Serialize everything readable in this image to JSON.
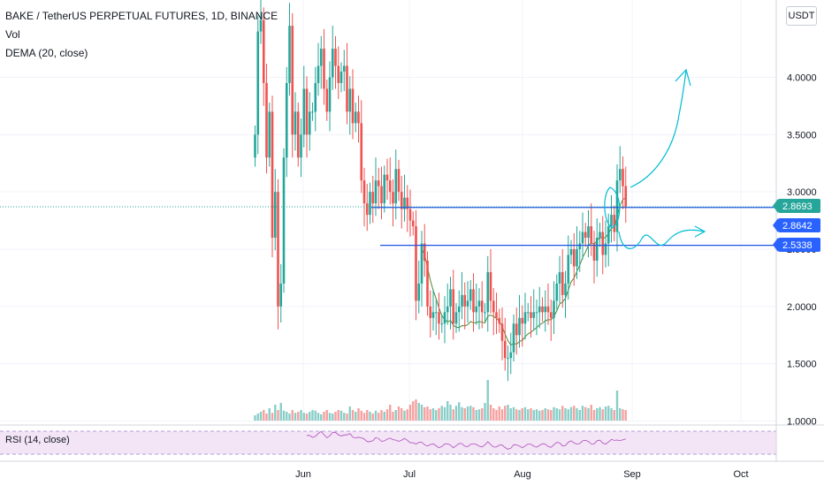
{
  "header": {
    "title": "BAKE / TetherUS PERPETUAL FUTURES, 1D, BINANCE",
    "vol_label": "Vol",
    "dema_label": "DEMA (20, close)"
  },
  "currency_button": "USDT",
  "rsi_label": "RSI (14, close)",
  "colors": {
    "up": "#26a69a",
    "down": "#ef5350",
    "level_line": "#1e53e5",
    "tag_current": "#26a69a",
    "tag_level": "#2962ff",
    "dema": "#4b8a2f",
    "rsi_line": "#9c27b0",
    "rsi_band": "#f3e5f5",
    "drawing": "#00bcd4"
  },
  "chart_data": {
    "type": "candlestick",
    "title": "BAKE / TetherUS PERPETUAL FUTURES, 1D, BINANCE",
    "x_ticks": [
      "Jun",
      "Jul",
      "Aug",
      "Sep",
      "Oct"
    ],
    "y_ticks": [
      "1.0000",
      "1.5000",
      "2.0000",
      "2.5000",
      "3.0000",
      "3.5000",
      "4.0000"
    ],
    "ylim": [
      0.95,
      4.45
    ],
    "price_tags": [
      {
        "label": "2.8693",
        "value": 2.8693,
        "kind": "current"
      },
      {
        "label": "2.8642",
        "value": 2.8642,
        "kind": "level"
      },
      {
        "label": "2.5338",
        "value": 2.5338,
        "kind": "level"
      }
    ],
    "horizontal_levels": [
      2.8642,
      2.5338
    ],
    "candles_close": [
      3.5,
      4.4,
      4.5,
      3.95,
      3.3,
      3.7,
      2.6,
      3.0,
      2.0,
      2.2,
      3.3,
      3.95,
      4.45,
      3.5,
      3.7,
      3.3,
      3.5,
      3.9,
      3.5,
      3.7,
      3.7,
      3.95,
      4.1,
      4.25,
      3.9,
      3.7,
      4.0,
      4.25,
      4.1,
      3.95,
      4.05,
      4.1,
      3.7,
      3.9,
      3.6,
      3.7,
      3.6,
      3.1,
      2.9,
      2.8,
      3.0,
      2.9,
      3.1,
      3.05,
      2.9,
      3.15,
      3.1,
      3.0,
      2.9,
      3.2,
      3.0,
      2.85,
      2.95,
      2.85,
      2.75,
      2.7,
      2.05,
      2.2,
      2.55,
      2.4,
      2.0,
      1.9,
      1.95,
      1.95,
      1.85,
      1.85,
      1.95,
      2.0,
      2.15,
      1.85,
      1.95,
      2.0,
      2.1,
      2.0,
      2.05,
      2.15,
      1.95,
      2.0,
      2.05,
      1.95,
      1.95,
      2.3,
      2.05,
      1.95,
      1.9,
      1.85,
      1.7,
      1.55,
      1.55,
      1.6,
      1.85,
      1.75,
      1.9,
      1.85,
      1.95,
      1.95,
      1.9,
      1.95,
      1.95,
      2.0,
      1.95,
      2.0,
      1.95,
      1.9,
      2.05,
      2.2,
      2.3,
      2.1,
      2.2,
      2.45,
      2.5,
      2.35,
      2.5,
      2.55,
      2.65,
      2.6,
      2.7,
      2.55,
      2.4,
      2.6,
      2.65,
      2.45,
      2.55,
      2.7,
      2.8,
      2.65,
      3.1,
      3.2,
      3.05,
      2.87
    ],
    "volume_relative": [
      0.15,
      0.2,
      0.25,
      0.3,
      0.2,
      0.35,
      0.22,
      0.45,
      0.3,
      0.5,
      0.28,
      0.25,
      0.2,
      0.3,
      0.22,
      0.25,
      0.3,
      0.22,
      0.2,
      0.25,
      0.3,
      0.28,
      0.22,
      0.18,
      0.25,
      0.3,
      0.22,
      0.2,
      0.25,
      0.3,
      0.28,
      0.22,
      0.2,
      0.4,
      0.3,
      0.25,
      0.35,
      0.28,
      0.22,
      0.3,
      0.25,
      0.2,
      0.28,
      0.22,
      0.3,
      0.25,
      0.32,
      0.45,
      0.25,
      0.3,
      0.4,
      0.35,
      0.28,
      0.32,
      0.45,
      0.55,
      0.6,
      0.5,
      0.45,
      0.38,
      0.4,
      0.32,
      0.35,
      0.3,
      0.35,
      0.42,
      0.38,
      0.55,
      0.45,
      0.32,
      0.42,
      0.52,
      0.38,
      0.35,
      0.4,
      0.42,
      0.38,
      0.3,
      0.32,
      0.35,
      0.5,
      1.15,
      0.45,
      0.35,
      0.3,
      0.4,
      0.32,
      0.42,
      0.45,
      0.35,
      0.38,
      0.32,
      0.3,
      0.35,
      0.38,
      0.32,
      0.35,
      0.3,
      0.32,
      0.28,
      0.3,
      0.35,
      0.32,
      0.3,
      0.38,
      0.35,
      0.32,
      0.42,
      0.35,
      0.32,
      0.38,
      0.42,
      0.35,
      0.3,
      0.42,
      0.38,
      0.35,
      0.45,
      0.3,
      0.35,
      0.38,
      0.32,
      0.4,
      0.42,
      0.35,
      0.3,
      0.85,
      0.35,
      0.32,
      0.3
    ]
  }
}
